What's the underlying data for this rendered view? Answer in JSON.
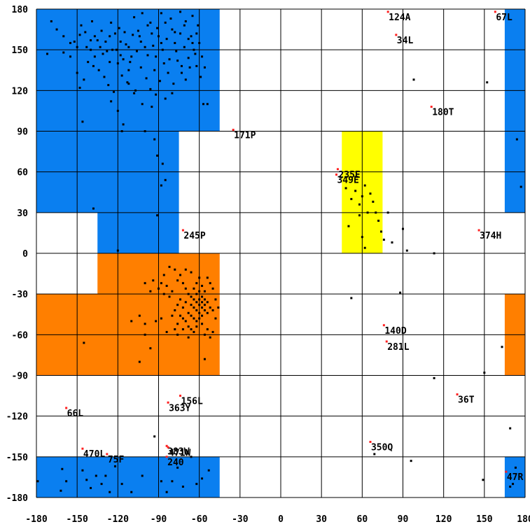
{
  "chart_data": {
    "type": "scatter",
    "title": "",
    "xlabel": "",
    "ylabel": "",
    "xlim": [
      -180,
      180
    ],
    "ylim": [
      -180,
      180
    ],
    "grid": true,
    "x_ticks": [
      -180,
      -150,
      -120,
      -90,
      -60,
      -30,
      0,
      30,
      60,
      90,
      120,
      150,
      180
    ],
    "y_ticks": [
      -180,
      -150,
      -120,
      -90,
      -60,
      -30,
      0,
      30,
      60,
      90,
      120,
      150,
      180
    ],
    "regions": [
      {
        "label": "",
        "color": "#0a7ff0",
        "x": [
          -180,
          -45
        ],
        "y": [
          90,
          180
        ]
      },
      {
        "label": "",
        "color": "#0a7ff0",
        "x": [
          -180,
          -75
        ],
        "y": [
          30,
          90
        ]
      },
      {
        "label": "",
        "color": "#0a7ff0",
        "x": [
          -135,
          -75
        ],
        "y": [
          0,
          30
        ]
      },
      {
        "label": "",
        "color": "#0a7ff0",
        "x": [
          165,
          180
        ],
        "y": [
          30,
          180
        ]
      },
      {
        "label": "",
        "color": "#0a7ff0",
        "x": [
          -180,
          -45
        ],
        "y": [
          -180,
          -150
        ]
      },
      {
        "label": "",
        "color": "#0a7ff0",
        "x": [
          165,
          180
        ],
        "y": [
          -180,
          -150
        ]
      },
      {
        "label": "",
        "color": "#ff7f00",
        "x": [
          -135,
          -45
        ],
        "y": [
          -30,
          0
        ]
      },
      {
        "label": "",
        "color": "#ff7f00",
        "x": [
          -180,
          -45
        ],
        "y": [
          -90,
          -30
        ]
      },
      {
        "label": "",
        "color": "#ff7f00",
        "x": [
          165,
          180
        ],
        "y": [
          -90,
          -30
        ]
      },
      {
        "label": "",
        "color": "#ffff00",
        "x": [
          45,
          75
        ],
        "y": [
          0,
          90
        ]
      }
    ],
    "outliers": [
      {
        "label": "124A",
        "x": 79,
        "y": 178
      },
      {
        "label": "67L",
        "x": 158,
        "y": 178
      },
      {
        "label": "34L",
        "x": 85,
        "y": 161
      },
      {
        "label": "180T",
        "x": 111,
        "y": 108
      },
      {
        "label": "171P",
        "x": -35,
        "y": 91
      },
      {
        "label": "235E",
        "x": 42,
        "y": 62
      },
      {
        "label": "349E",
        "x": 41,
        "y": 58
      },
      {
        "label": "245P",
        "x": -72,
        "y": 17
      },
      {
        "label": "374H",
        "x": 146,
        "y": 17
      },
      {
        "label": "140D",
        "x": 76,
        "y": -53
      },
      {
        "label": "281L",
        "x": 78,
        "y": -65
      },
      {
        "label": "156L",
        "x": -74,
        "y": -105
      },
      {
        "label": "363Y",
        "x": -83,
        "y": -110
      },
      {
        "label": "36T",
        "x": 130,
        "y": -104
      },
      {
        "label": "66L",
        "x": -158,
        "y": -114
      },
      {
        "label": "350Q",
        "x": 66,
        "y": -139
      },
      {
        "label": "470L",
        "x": -146,
        "y": -144
      },
      {
        "label": "75F",
        "x": -128,
        "y": -148
      },
      {
        "label": "383W",
        "x": -84,
        "y": -142
      },
      {
        "label": "471W",
        "x": -83,
        "y": -143
      },
      {
        "label": "240",
        "x": -84,
        "y": -150
      },
      {
        "label": "47R",
        "x": 166,
        "y": -161
      }
    ],
    "points": [
      [
        -169,
        171
      ],
      [
        -165,
        165
      ],
      [
        -172,
        147
      ],
      [
        -160,
        160
      ],
      [
        -155,
        155
      ],
      [
        -150,
        152
      ],
      [
        -147,
        168
      ],
      [
        -144,
        163
      ],
      [
        -140,
        157
      ],
      [
        -137,
        145
      ],
      [
        -133,
        152
      ],
      [
        -128,
        149
      ],
      [
        -125,
        170
      ],
      [
        -122,
        162
      ],
      [
        -118,
        156
      ],
      [
        -116,
        143
      ],
      [
        -112,
        135
      ],
      [
        -108,
        174
      ],
      [
        -104,
        160
      ],
      [
        -100,
        152
      ],
      [
        -96,
        170
      ],
      [
        -92,
        145
      ],
      [
        -88,
        177
      ],
      [
        -84,
        158
      ],
      [
        -80,
        165
      ],
      [
        -77,
        149
      ],
      [
        -73,
        138
      ],
      [
        -70,
        171
      ],
      [
        -66,
        160
      ],
      [
        -63,
        147
      ],
      [
        -61,
        168
      ],
      [
        -58,
        145
      ],
      [
        -56,
        137
      ],
      [
        -150,
        133
      ],
      [
        -145,
        128
      ],
      [
        -142,
        141
      ],
      [
        -138,
        138
      ],
      [
        -134,
        135
      ],
      [
        -130,
        130
      ],
      [
        -127,
        124
      ],
      [
        -123,
        119
      ],
      [
        -120,
        140
      ],
      [
        -117,
        131
      ],
      [
        -113,
        126
      ],
      [
        -110,
        145
      ],
      [
        -107,
        120
      ],
      [
        -103,
        137
      ],
      [
        -99,
        129
      ],
      [
        -96,
        121
      ],
      [
        -93,
        135
      ],
      [
        -89,
        127
      ],
      [
        -86,
        140
      ],
      [
        -83,
        133
      ],
      [
        -79,
        125
      ],
      [
        -76,
        142
      ],
      [
        -73,
        133
      ],
      [
        -70,
        128
      ],
      [
        -67,
        137
      ],
      [
        -64,
        150
      ],
      [
        -62,
        138
      ],
      [
        -59,
        130
      ],
      [
        -140,
        150
      ],
      [
        -135,
        157
      ],
      [
        -131,
        147
      ],
      [
        -126,
        141
      ],
      [
        -121,
        150
      ],
      [
        -118,
        146
      ],
      [
        -114,
        154
      ],
      [
        -111,
        141
      ],
      [
        -106,
        149
      ],
      [
        -103,
        156
      ],
      [
        -98,
        146
      ],
      [
        -94,
        153
      ],
      [
        -90,
        160
      ],
      [
        -87,
        150
      ],
      [
        -82,
        143
      ],
      [
        -78,
        155
      ],
      [
        -74,
        162
      ],
      [
        -71,
        152
      ],
      [
        -68,
        144
      ],
      [
        -65,
        155
      ],
      [
        -160,
        148
      ],
      [
        -155,
        145
      ],
      [
        -152,
        156
      ],
      [
        -148,
        161
      ],
      [
        -143,
        152
      ],
      [
        -139,
        171
      ],
      [
        -137,
        160
      ],
      [
        -132,
        164
      ],
      [
        -129,
        156
      ],
      [
        -126,
        160
      ],
      [
        -124,
        150
      ],
      [
        -119,
        166
      ],
      [
        -115,
        163
      ],
      [
        -112,
        152
      ],
      [
        -109,
        161
      ],
      [
        -105,
        164
      ],
      [
        -102,
        177
      ],
      [
        -98,
        168
      ],
      [
        -95,
        162
      ],
      [
        -91,
        166
      ],
      [
        -88,
        155
      ],
      [
        -85,
        170
      ],
      [
        -81,
        173
      ],
      [
        -78,
        163
      ],
      [
        -74,
        178
      ],
      [
        -71,
        168
      ],
      [
        -68,
        158
      ],
      [
        -65,
        175
      ],
      [
        -62,
        162
      ],
      [
        -60,
        155
      ],
      [
        -125,
        112
      ],
      [
        -120,
        105
      ],
      [
        -117,
        90
      ],
      [
        -116,
        95
      ],
      [
        -112,
        125
      ],
      [
        -108,
        118
      ],
      [
        -102,
        110
      ],
      [
        -95,
        108
      ],
      [
        -92,
        117
      ],
      [
        -85,
        114
      ],
      [
        -80,
        118
      ],
      [
        -57,
        110
      ],
      [
        -54,
        110
      ],
      [
        -148,
        122
      ],
      [
        -146,
        97
      ],
      [
        -100,
        90
      ],
      [
        -93,
        84
      ],
      [
        -91,
        72
      ],
      [
        -87,
        66
      ],
      [
        -85,
        54
      ],
      [
        -88,
        50
      ],
      [
        -91,
        28
      ],
      [
        -138,
        33
      ],
      [
        -120,
        2
      ],
      [
        -72,
        -22
      ],
      [
        -70,
        -26
      ],
      [
        -68,
        -30
      ],
      [
        -66,
        -32
      ],
      [
        -64,
        -34
      ],
      [
        -62,
        -36
      ],
      [
        -60,
        -38
      ],
      [
        -58,
        -40
      ],
      [
        -56,
        -42
      ],
      [
        -54,
        -44
      ],
      [
        -66,
        -38
      ],
      [
        -64,
        -40
      ],
      [
        -62,
        -42
      ],
      [
        -60,
        -44
      ],
      [
        -58,
        -46
      ],
      [
        -68,
        -44
      ],
      [
        -66,
        -46
      ],
      [
        -64,
        -48
      ],
      [
        -62,
        -50
      ],
      [
        -60,
        -34
      ],
      [
        -58,
        -36
      ],
      [
        -56,
        -38
      ],
      [
        -62,
        -30
      ],
      [
        -60,
        -28
      ],
      [
        -58,
        -32
      ],
      [
        -56,
        -34
      ],
      [
        -54,
        -36
      ],
      [
        -52,
        -40
      ],
      [
        -50,
        -42
      ],
      [
        -70,
        -36
      ],
      [
        -72,
        -40
      ],
      [
        -74,
        -34
      ],
      [
        -76,
        -38
      ],
      [
        -78,
        -42
      ],
      [
        -80,
        -28
      ],
      [
        -82,
        -32
      ],
      [
        -84,
        -24
      ],
      [
        -86,
        -30
      ],
      [
        -70,
        -50
      ],
      [
        -68,
        -54
      ],
      [
        -66,
        -56
      ],
      [
        -72,
        -48
      ],
      [
        -74,
        -46
      ],
      [
        -76,
        -52
      ],
      [
        -78,
        -56
      ],
      [
        -80,
        -46
      ],
      [
        -64,
        -26
      ],
      [
        -62,
        -22
      ],
      [
        -60,
        -18
      ],
      [
        -66,
        -14
      ],
      [
        -70,
        -12
      ],
      [
        -74,
        -16
      ],
      [
        -76,
        -20
      ],
      [
        -78,
        -12
      ],
      [
        -82,
        -10
      ],
      [
        -86,
        -16
      ],
      [
        -88,
        -22
      ],
      [
        -90,
        -26
      ],
      [
        -94,
        -20
      ],
      [
        -96,
        -28
      ],
      [
        -100,
        -22
      ],
      [
        -104,
        -46
      ],
      [
        -100,
        -52
      ],
      [
        -92,
        -50
      ],
      [
        -88,
        -48
      ],
      [
        -84,
        -58
      ],
      [
        -76,
        -60
      ],
      [
        -72,
        -56
      ],
      [
        -68,
        -62
      ],
      [
        -64,
        -58
      ],
      [
        -58,
        -52
      ],
      [
        -54,
        -56
      ],
      [
        -50,
        -58
      ],
      [
        -48,
        -48
      ],
      [
        -46,
        -40
      ],
      [
        -48,
        -34
      ],
      [
        -50,
        -26
      ],
      [
        -52,
        -22
      ],
      [
        -54,
        -18
      ],
      [
        -56,
        -28
      ],
      [
        -58,
        -24
      ],
      [
        -60,
        -48
      ],
      [
        -62,
        -54
      ],
      [
        -56,
        -60
      ],
      [
        -52,
        -62
      ],
      [
        -110,
        -50
      ],
      [
        -100,
        -60
      ],
      [
        -96,
        -70
      ],
      [
        -56,
        -78
      ],
      [
        -104,
        -80
      ],
      [
        -145,
        -66
      ],
      [
        -161,
        -159
      ],
      [
        -158,
        -168
      ],
      [
        -162,
        -175
      ],
      [
        -179,
        -168
      ],
      [
        -146,
        -160
      ],
      [
        -143,
        -167
      ],
      [
        -140,
        -173
      ],
      [
        -136,
        -164
      ],
      [
        -132,
        -170
      ],
      [
        -129,
        -164
      ],
      [
        -126,
        -176
      ],
      [
        -122,
        -157
      ],
      [
        -117,
        -170
      ],
      [
        -110,
        -176
      ],
      [
        -102,
        -164
      ],
      [
        -88,
        -168
      ],
      [
        -84,
        -176
      ],
      [
        -80,
        -168
      ],
      [
        -76,
        -158
      ],
      [
        -72,
        -172
      ],
      [
        -62,
        -170
      ],
      [
        -58,
        -166
      ],
      [
        -53,
        -160
      ],
      [
        -93,
        -135
      ],
      [
        -66,
        -150
      ],
      [
        48,
        48
      ],
      [
        52,
        40
      ],
      [
        55,
        46
      ],
      [
        58,
        36
      ],
      [
        60,
        42
      ],
      [
        62,
        50
      ],
      [
        64,
        30
      ],
      [
        66,
        44
      ],
      [
        68,
        38
      ],
      [
        70,
        30
      ],
      [
        72,
        24
      ],
      [
        74,
        16
      ],
      [
        58,
        28
      ],
      [
        60,
        12
      ],
      [
        62,
        4
      ],
      [
        50,
        20
      ],
      [
        76,
        10
      ],
      [
        79,
        30
      ],
      [
        82,
        8
      ],
      [
        90,
        18
      ],
      [
        93,
        2
      ],
      [
        113,
        0
      ],
      [
        98,
        128
      ],
      [
        152,
        126
      ],
      [
        174,
        84
      ],
      [
        177,
        49
      ],
      [
        88,
        -29
      ],
      [
        150,
        -88
      ],
      [
        163,
        -69
      ],
      [
        113,
        -92
      ],
      [
        69,
        -148
      ],
      [
        169,
        -129
      ],
      [
        169,
        -172
      ],
      [
        171,
        -170
      ],
      [
        173,
        -158
      ],
      [
        149,
        -167
      ],
      [
        96,
        -153
      ],
      [
        52,
        -33
      ]
    ]
  },
  "colors": {
    "blue": "#0a7ff0",
    "orange": "#ff7f00",
    "yellow": "#ffff00",
    "outlier": "#ff2020",
    "point": "#000000"
  }
}
